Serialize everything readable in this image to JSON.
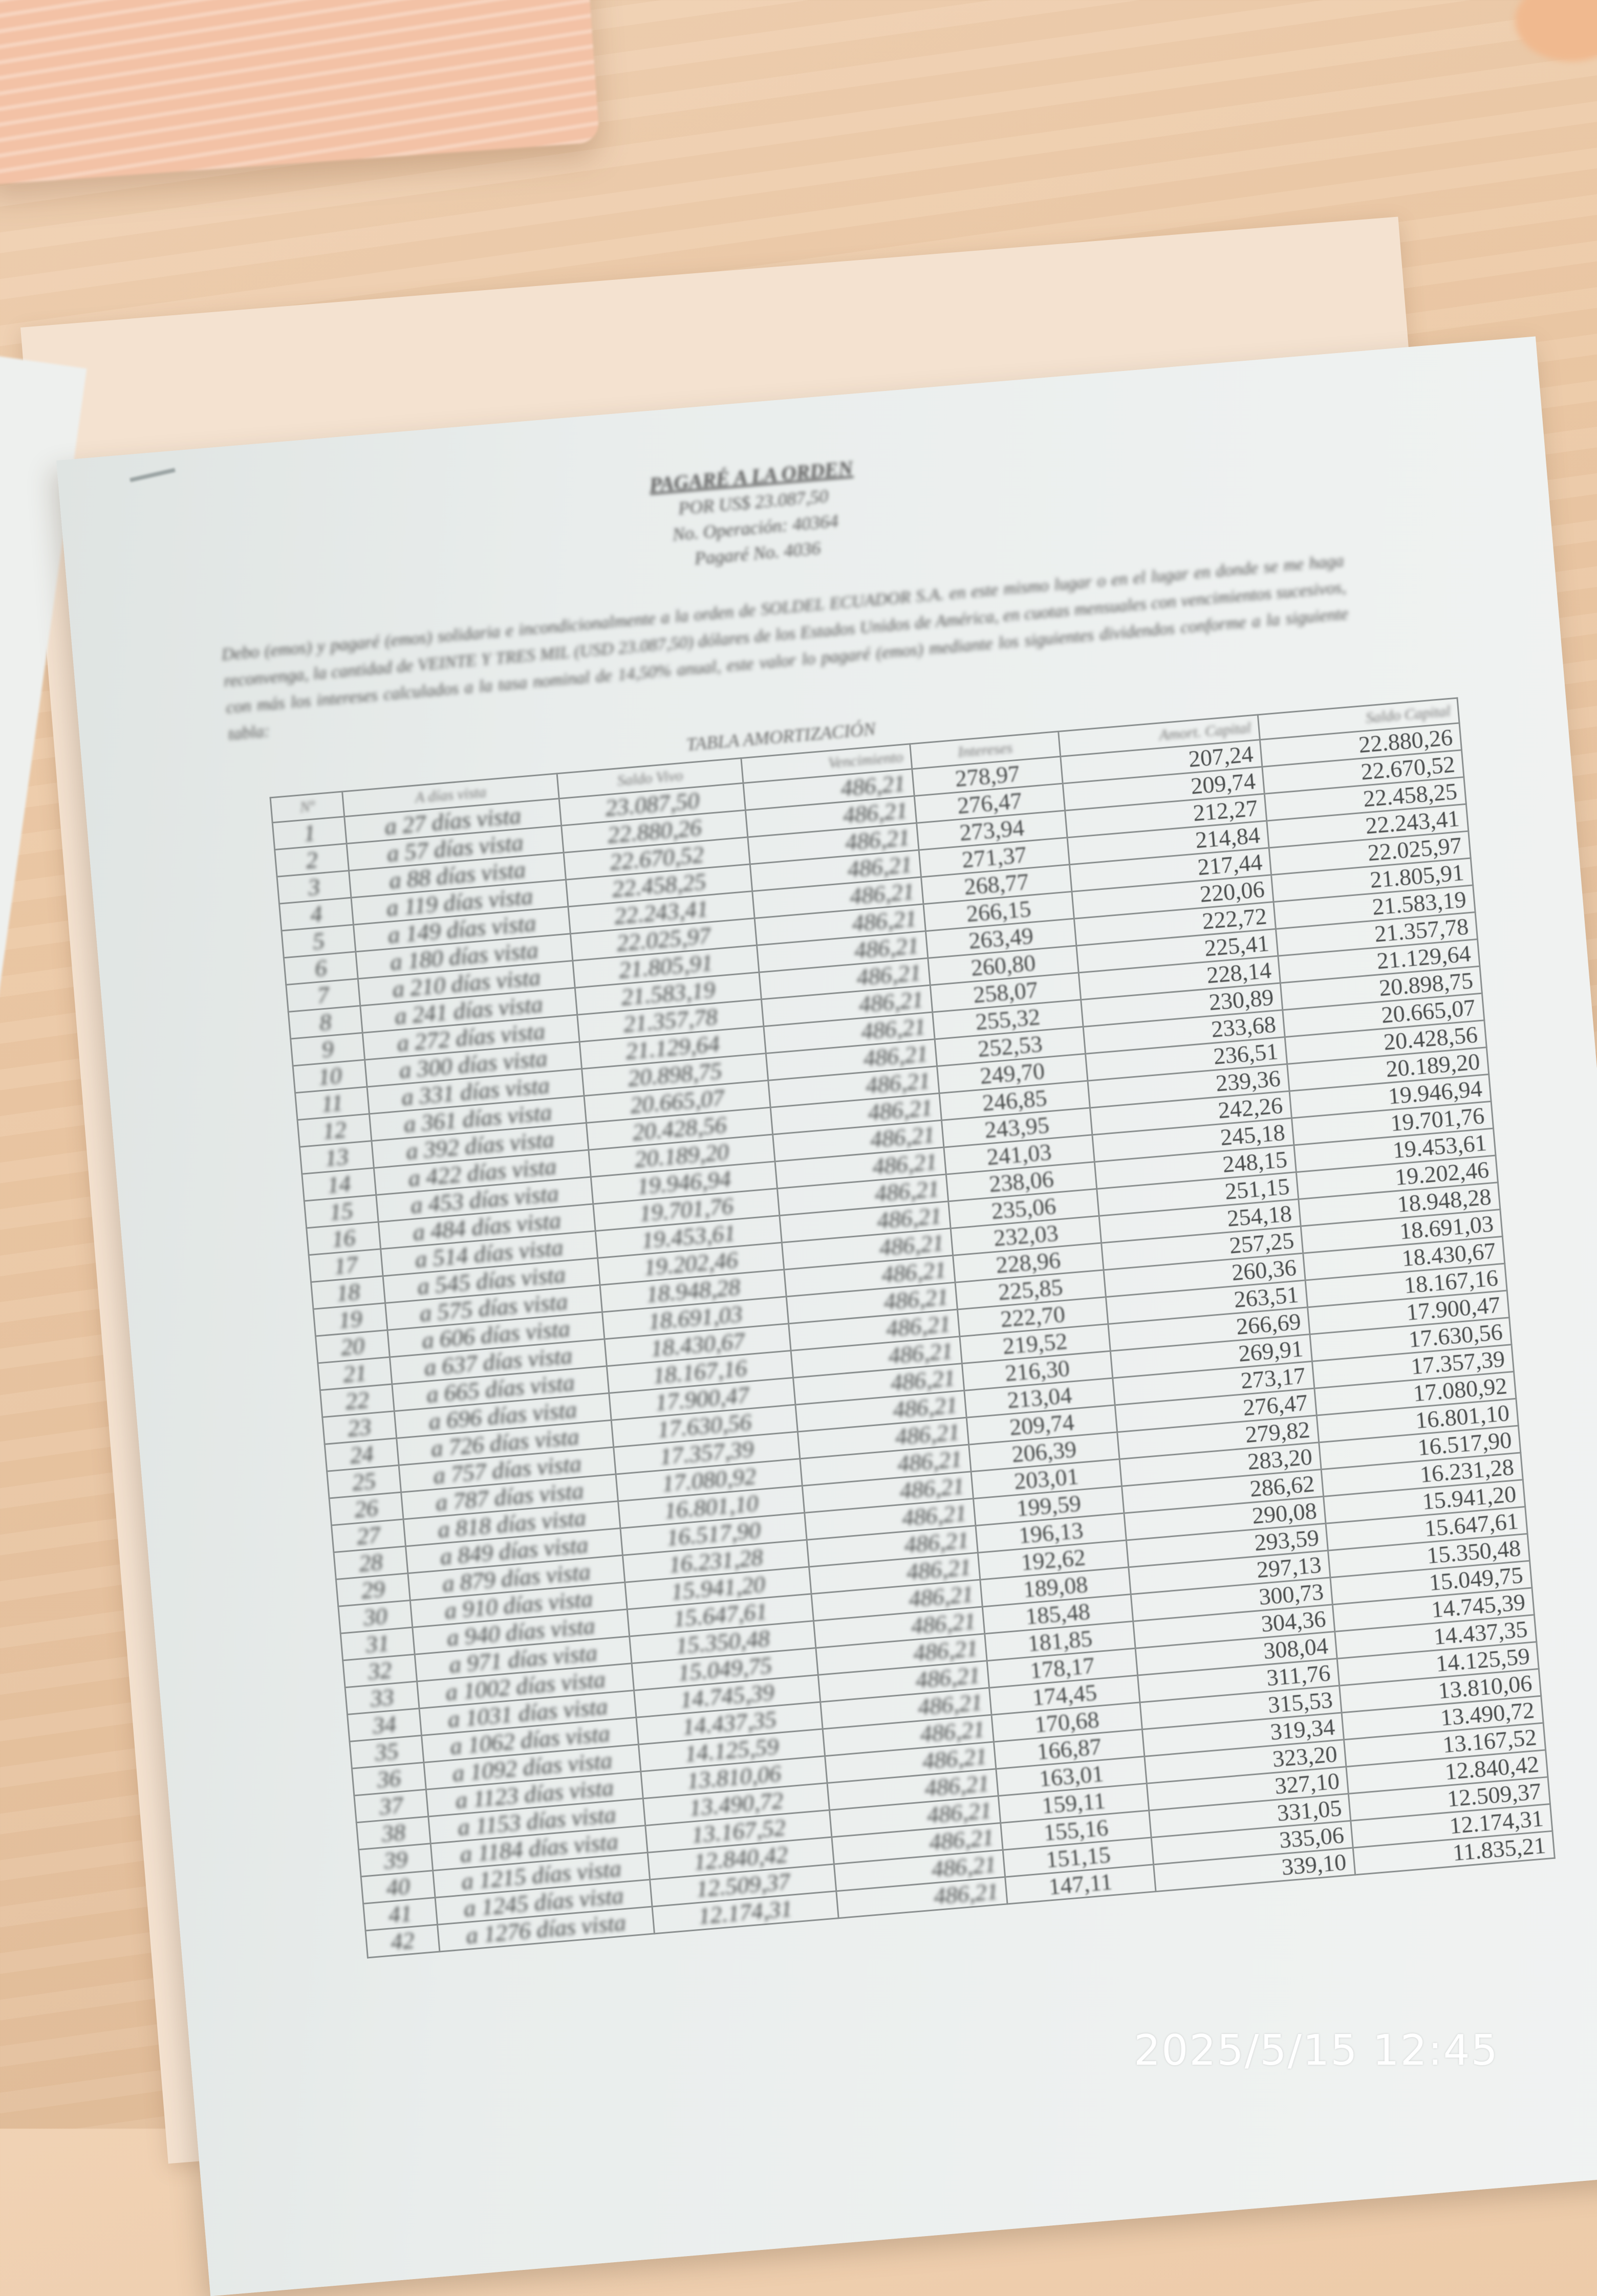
{
  "document": {
    "title_lines": [
      "PAGARÉ A LA ORDEN",
      "POR US$ 23.087,50",
      "No. Operación: 40364",
      "Pagaré No. 4036"
    ],
    "paragraph": "Debo (emos) y pagaré (emos) solidaria e incondicionalmente a la orden de SOLDEL ECUADOR S.A. en este mismo lugar o en el lugar en donde se me haga reconvenga, la cantidad de VEINTE Y TRES MIL (USD 23.087,50) dólares de los Estados Unidos de América, en cuotas mensuales con vencimientos sucesivos, con más los intereses calculados a la tasa nominal de 14,50% anual, este valor lo pagaré (emos) mediante los siguientes dividendos conforme a la siguiente tabla:",
    "table_title": "TABLA AMORTIZACIÓN",
    "columns": [
      "Nº",
      "A días vista",
      "Saldo Vivo",
      "Vencimiento",
      "Intereses",
      "Amort. Capital",
      "Saldo Capital"
    ],
    "rows": [
      [
        "1",
        "a 27 días vista",
        "23.087,50",
        "486,21",
        "278,97",
        "207,24",
        "22.880,26"
      ],
      [
        "2",
        "a 57 días vista",
        "22.880,26",
        "486,21",
        "276,47",
        "209,74",
        "22.670,52"
      ],
      [
        "3",
        "a 88 días vista",
        "22.670,52",
        "486,21",
        "273,94",
        "212,27",
        "22.458,25"
      ],
      [
        "4",
        "a 119 días vista",
        "22.458,25",
        "486,21",
        "271,37",
        "214,84",
        "22.243,41"
      ],
      [
        "5",
        "a 149 días vista",
        "22.243,41",
        "486,21",
        "268,77",
        "217,44",
        "22.025,97"
      ],
      [
        "6",
        "a 180 días vista",
        "22.025,97",
        "486,21",
        "266,15",
        "220,06",
        "21.805,91"
      ],
      [
        "7",
        "a 210 días vista",
        "21.805,91",
        "486,21",
        "263,49",
        "222,72",
        "21.583,19"
      ],
      [
        "8",
        "a 241 días vista",
        "21.583,19",
        "486,21",
        "260,80",
        "225,41",
        "21.357,78"
      ],
      [
        "9",
        "a 272 días vista",
        "21.357,78",
        "486,21",
        "258,07",
        "228,14",
        "21.129,64"
      ],
      [
        "10",
        "a 300 días vista",
        "21.129,64",
        "486,21",
        "255,32",
        "230,89",
        "20.898,75"
      ],
      [
        "11",
        "a 331 días vista",
        "20.898,75",
        "486,21",
        "252,53",
        "233,68",
        "20.665,07"
      ],
      [
        "12",
        "a 361 días vista",
        "20.665,07",
        "486,21",
        "249,70",
        "236,51",
        "20.428,56"
      ],
      [
        "13",
        "a 392 días vista",
        "20.428,56",
        "486,21",
        "246,85",
        "239,36",
        "20.189,20"
      ],
      [
        "14",
        "a 422 días vista",
        "20.189,20",
        "486,21",
        "243,95",
        "242,26",
        "19.946,94"
      ],
      [
        "15",
        "a 453 días vista",
        "19.946,94",
        "486,21",
        "241,03",
        "245,18",
        "19.701,76"
      ],
      [
        "16",
        "a 484 días vista",
        "19.701,76",
        "486,21",
        "238,06",
        "248,15",
        "19.453,61"
      ],
      [
        "17",
        "a 514 días vista",
        "19.453,61",
        "486,21",
        "235,06",
        "251,15",
        "19.202,46"
      ],
      [
        "18",
        "a 545 días vista",
        "19.202,46",
        "486,21",
        "232,03",
        "254,18",
        "18.948,28"
      ],
      [
        "19",
        "a 575 días vista",
        "18.948,28",
        "486,21",
        "228,96",
        "257,25",
        "18.691,03"
      ],
      [
        "20",
        "a 606 días vista",
        "18.691,03",
        "486,21",
        "225,85",
        "260,36",
        "18.430,67"
      ],
      [
        "21",
        "a 637 días vista",
        "18.430,67",
        "486,21",
        "222,70",
        "263,51",
        "18.167,16"
      ],
      [
        "22",
        "a 665 días vista",
        "18.167,16",
        "486,21",
        "219,52",
        "266,69",
        "17.900,47"
      ],
      [
        "23",
        "a 696 días vista",
        "17.900,47",
        "486,21",
        "216,30",
        "269,91",
        "17.630,56"
      ],
      [
        "24",
        "a 726 días vista",
        "17.630,56",
        "486,21",
        "213,04",
        "273,17",
        "17.357,39"
      ],
      [
        "25",
        "a 757 días vista",
        "17.357,39",
        "486,21",
        "209,74",
        "276,47",
        "17.080,92"
      ],
      [
        "26",
        "a 787 días vista",
        "17.080,92",
        "486,21",
        "206,39",
        "279,82",
        "16.801,10"
      ],
      [
        "27",
        "a 818 días vista",
        "16.801,10",
        "486,21",
        "203,01",
        "283,20",
        "16.517,90"
      ],
      [
        "28",
        "a 849 días vista",
        "16.517,90",
        "486,21",
        "199,59",
        "286,62",
        "16.231,28"
      ],
      [
        "29",
        "a 879 días vista",
        "16.231,28",
        "486,21",
        "196,13",
        "290,08",
        "15.941,20"
      ],
      [
        "30",
        "a 910 días vista",
        "15.941,20",
        "486,21",
        "192,62",
        "293,59",
        "15.647,61"
      ],
      [
        "31",
        "a 940 días vista",
        "15.647,61",
        "486,21",
        "189,08",
        "297,13",
        "15.350,48"
      ],
      [
        "32",
        "a 971 días vista",
        "15.350,48",
        "486,21",
        "185,48",
        "300,73",
        "15.049,75"
      ],
      [
        "33",
        "a 1002 días vista",
        "15.049,75",
        "486,21",
        "181,85",
        "304,36",
        "14.745,39"
      ],
      [
        "34",
        "a 1031 días vista",
        "14.745,39",
        "486,21",
        "178,17",
        "308,04",
        "14.437,35"
      ],
      [
        "35",
        "a 1062 días vista",
        "14.437,35",
        "486,21",
        "174,45",
        "311,76",
        "14.125,59"
      ],
      [
        "36",
        "a 1092 días vista",
        "14.125,59",
        "486,21",
        "170,68",
        "315,53",
        "13.810,06"
      ],
      [
        "37",
        "a 1123 días vista",
        "13.810,06",
        "486,21",
        "166,87",
        "319,34",
        "13.490,72"
      ],
      [
        "38",
        "a 1153 días vista",
        "13.490,72",
        "486,21",
        "163,01",
        "323,20",
        "13.167,52"
      ],
      [
        "39",
        "a 1184 días vista",
        "13.167,52",
        "486,21",
        "159,11",
        "327,10",
        "12.840,42"
      ],
      [
        "40",
        "a 1215 días vista",
        "12.840,42",
        "486,21",
        "155,16",
        "331,05",
        "12.509,37"
      ],
      [
        "41",
        "a 1245 días vista",
        "12.509,37",
        "486,21",
        "151,15",
        "335,06",
        "12.174,31"
      ],
      [
        "42",
        "a 1276 días vista",
        "12.174,31",
        "486,21",
        "147,11",
        "339,10",
        "11.835,21"
      ]
    ]
  },
  "camera_timestamp": "2025/5/15 12:45",
  "colors": {
    "desk": "#ecc9a6",
    "paper": "#eef1f0",
    "ink": "#4a4d4d",
    "pink_papers": "#f3c2a6",
    "timestamp": "#ffffff"
  }
}
